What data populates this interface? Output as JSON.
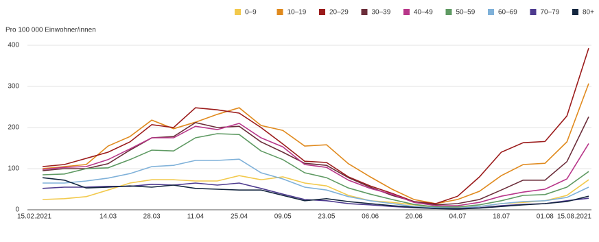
{
  "chart_data": {
    "type": "line",
    "y_label": "Pro 100 000 Einwohner/innen",
    "categories": [
      "15.02.2021",
      null,
      null,
      "14.03",
      null,
      "28.03",
      null,
      "11.04",
      null,
      "25.04",
      null,
      "09.05",
      null,
      "23.05",
      null,
      "06.06",
      null,
      "20.06",
      null,
      "04.07",
      null,
      "18.07",
      null,
      "01.08",
      null,
      "15.08.2021"
    ],
    "ylim": [
      0,
      400
    ],
    "yticks": [
      0,
      100,
      200,
      300,
      400
    ],
    "grid": true,
    "legend": "top-right",
    "series": [
      {
        "name": "0–9",
        "color": "#f2c94c",
        "values": [
          25,
          27,
          32,
          48,
          65,
          73,
          73,
          70,
          70,
          83,
          73,
          80,
          65,
          58,
          35,
          22,
          18,
          12,
          5,
          5,
          8,
          15,
          18,
          22,
          35,
          73
        ]
      },
      {
        "name": "10–19",
        "color": "#e08a1e",
        "values": [
          100,
          105,
          110,
          155,
          178,
          218,
          197,
          213,
          232,
          248,
          205,
          193,
          155,
          158,
          112,
          80,
          50,
          25,
          15,
          25,
          45,
          83,
          110,
          113,
          165,
          307
        ]
      },
      {
        "name": "20–29",
        "color": "#9b1b1b",
        "values": [
          105,
          110,
          125,
          140,
          165,
          207,
          200,
          248,
          243,
          235,
          200,
          160,
          118,
          115,
          80,
          58,
          40,
          20,
          15,
          33,
          80,
          140,
          163,
          166,
          228,
          393
        ]
      },
      {
        "name": "30–39",
        "color": "#6b2d3a",
        "values": [
          95,
          100,
          100,
          112,
          145,
          175,
          178,
          212,
          200,
          203,
          165,
          140,
          113,
          108,
          78,
          55,
          35,
          20,
          12,
          15,
          25,
          48,
          72,
          72,
          117,
          226
        ]
      },
      {
        "name": "40–49",
        "color": "#b8378a",
        "values": [
          98,
          103,
          105,
          122,
          148,
          175,
          175,
          203,
          195,
          210,
          175,
          153,
          110,
          103,
          72,
          52,
          38,
          18,
          10,
          10,
          18,
          33,
          43,
          50,
          75,
          161
        ]
      },
      {
        "name": "50–59",
        "color": "#5f9a63",
        "values": [
          85,
          87,
          100,
          102,
          122,
          145,
          143,
          175,
          185,
          183,
          143,
          122,
          90,
          78,
          53,
          38,
          25,
          13,
          7,
          7,
          12,
          22,
          35,
          37,
          55,
          93
        ]
      },
      {
        "name": "60–69",
        "color": "#7fb1d9",
        "values": [
          65,
          65,
          70,
          77,
          88,
          105,
          108,
          120,
          120,
          123,
          90,
          75,
          55,
          48,
          32,
          22,
          15,
          8,
          5,
          4,
          8,
          15,
          20,
          22,
          30,
          55
        ]
      },
      {
        "name": "70–79",
        "color": "#4e3b8f",
        "values": [
          52,
          55,
          55,
          57,
          57,
          62,
          60,
          65,
          60,
          65,
          52,
          38,
          25,
          22,
          15,
          12,
          8,
          5,
          3,
          3,
          5,
          10,
          13,
          15,
          22,
          28
        ]
      },
      {
        "name": "80+",
        "color": "#14263f",
        "values": [
          78,
          72,
          53,
          55,
          58,
          55,
          60,
          52,
          50,
          48,
          48,
          35,
          22,
          27,
          20,
          15,
          10,
          6,
          3,
          2,
          4,
          8,
          12,
          15,
          20,
          33
        ]
      }
    ]
  }
}
